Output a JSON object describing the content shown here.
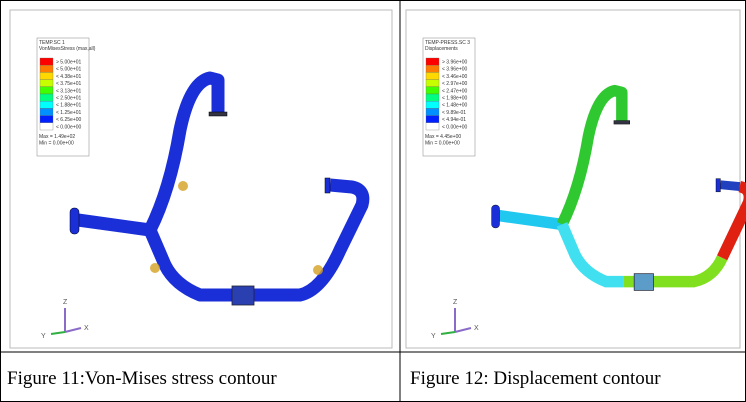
{
  "figures": [
    {
      "header": [
        "TEMP.SC 1",
        "VonMisesStress (max,all)"
      ],
      "legend": [
        "> 5.00e+01",
        "< 5.00e+01",
        "< 4.38e+01",
        "< 3.75e+01",
        "< 3.13e+01",
        "< 2.50e+01",
        "< 1.88e+01",
        "< 1.25e+01",
        "< 6.25e+00",
        "< 0.00e+00"
      ],
      "stats": [
        "Max = 1.49e+02",
        "Min = 0.00e+00"
      ],
      "axes": [
        "Z",
        "Y",
        "X"
      ],
      "caption": "Figure 11:Von-Mises stress contour"
    },
    {
      "header": [
        "TEMP-PRESS.SC 3",
        "Displacements"
      ],
      "legend": [
        "> 3.96e+00",
        "< 3.96e+00",
        "< 3.46e+00",
        "< 2.97e+00",
        "< 2.47e+00",
        "< 1.98e+00",
        "< 1.48e+00",
        "< 9.89e-01",
        "< 4.94e-01",
        "< 0.00e+00"
      ],
      "stats": [
        "Max = 4.45e+00",
        "Min = 0.00e+00"
      ],
      "axes": [
        "Z",
        "Y",
        "X"
      ],
      "caption": "Figure 12: Displacement contour"
    }
  ]
}
